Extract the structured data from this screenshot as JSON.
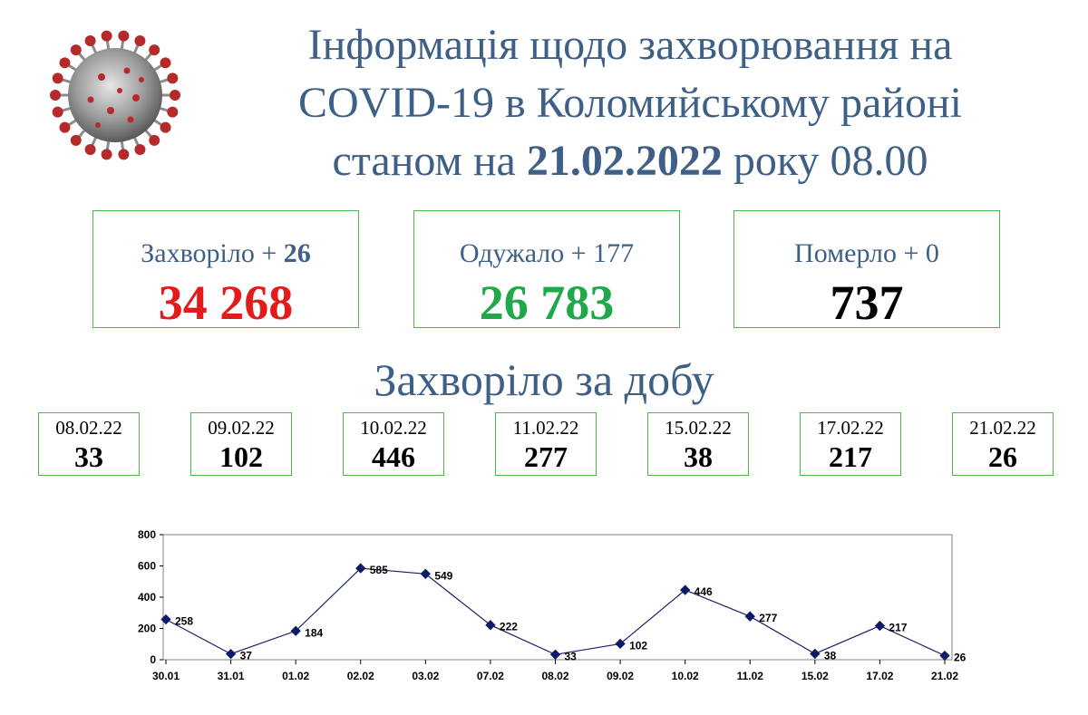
{
  "title": {
    "line1": "Інформація щодо захворювання на",
    "line2": "COVID-19 в Коломийському районі",
    "line3_prefix": "станом на ",
    "line3_date": "21.02.2022",
    "line3_suffix": " року 08.00"
  },
  "icons": {
    "virus": "virus-icon"
  },
  "colors": {
    "title": "#3e5f86",
    "border": "#4cb54c",
    "sick": "#e31b1b",
    "recovered": "#21a84a",
    "died": "#000000",
    "line": "#1b1e6b",
    "marker": "#0d1a66"
  },
  "cards": {
    "sick": {
      "label": "Захворіло + ",
      "delta": "26",
      "value": "34 268"
    },
    "recovered": {
      "label": "Одужало + 177",
      "value": "26 783"
    },
    "died": {
      "label": "Померло + 0",
      "value": "737"
    }
  },
  "subtitle": "Захворіло за добу",
  "daily": [
    {
      "date": "08.02.22",
      "value": "33"
    },
    {
      "date": "09.02.22",
      "value": "102"
    },
    {
      "date": "10.02.22",
      "value": "446"
    },
    {
      "date": "11.02.22",
      "value": "277"
    },
    {
      "date": "15.02.22",
      "value": "38"
    },
    {
      "date": "17.02.22",
      "value": "217"
    },
    {
      "date": "21.02.22",
      "value": "26"
    }
  ],
  "chart_data": {
    "type": "line",
    "categories": [
      "30.01",
      "31.01",
      "01.02",
      "02.02",
      "03.02",
      "07.02",
      "08.02",
      "09.02",
      "10.02",
      "11.02",
      "15.02",
      "17.02",
      "21.02"
    ],
    "values": [
      258,
      37,
      184,
      585,
      549,
      222,
      33,
      102,
      446,
      277,
      38,
      217,
      26
    ],
    "data_labels": [
      "258",
      "37",
      "184",
      "585",
      "549",
      "222",
      "33",
      "102",
      "446",
      "277",
      "38",
      "217",
      "26"
    ],
    "yticks": [
      "0",
      "200",
      "400",
      "600",
      "800"
    ],
    "ylim": [
      0,
      800
    ],
    "grid": false,
    "legend": "none"
  }
}
